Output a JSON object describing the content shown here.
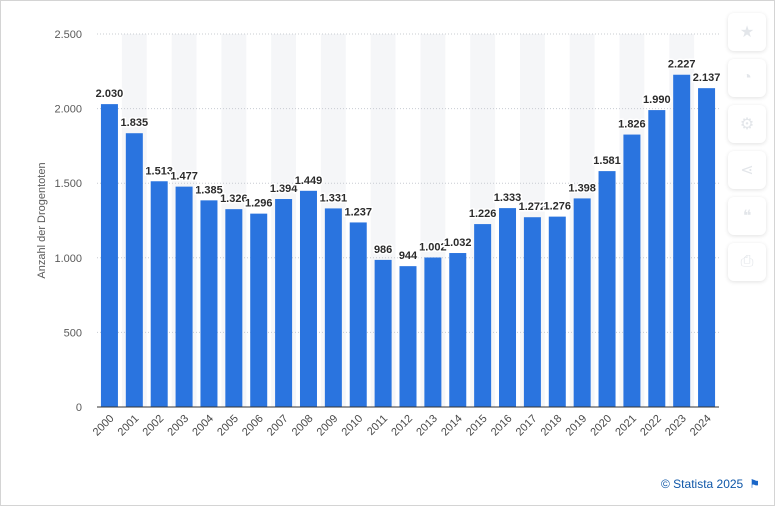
{
  "chart_data": {
    "type": "bar",
    "title": "",
    "xlabel": "",
    "ylabel": "Anzahl der Drogentoten",
    "categories": [
      "2000",
      "2001",
      "2002",
      "2003",
      "2004",
      "2005",
      "2006",
      "2007",
      "2008",
      "2009",
      "2010",
      "2011",
      "2012",
      "2013",
      "2014",
      "2015",
      "2016",
      "2017",
      "2018",
      "2019",
      "2020",
      "2021",
      "2022",
      "2023",
      "2024"
    ],
    "values": [
      2030,
      1835,
      1513,
      1477,
      1385,
      1326,
      1296,
      1394,
      1449,
      1331,
      1237,
      986,
      944,
      1002,
      1032,
      1226,
      1333,
      1272,
      1276,
      1398,
      1581,
      1826,
      1990,
      2227,
      2137
    ],
    "value_labels": [
      "2.030",
      "1.835",
      "1.513",
      "1.477",
      "1.385",
      "1.326",
      "1.296",
      "1.394",
      "1.449",
      "1.331",
      "1.237",
      "986",
      "944",
      "1.002",
      "1.032",
      "1.226",
      "1.333",
      "1.272",
      "1.276",
      "1.398",
      "1.581",
      "1.826",
      "1.990",
      "2.227",
      "2.137"
    ],
    "ylim": [
      0,
      2500
    ],
    "yticks": [
      0,
      500,
      1000,
      1500,
      2000,
      2500
    ],
    "ytick_labels": [
      "0",
      "500",
      "1.000",
      "1.500",
      "2.000",
      "2.500"
    ],
    "grid": true,
    "bar_color": "#2a74df"
  },
  "toolbar": {
    "icons": [
      "star-icon",
      "bell-icon",
      "settings-icon",
      "share-icon",
      "quote-icon",
      "print-icon"
    ]
  },
  "credits": {
    "text": "© Statista 2025"
  }
}
